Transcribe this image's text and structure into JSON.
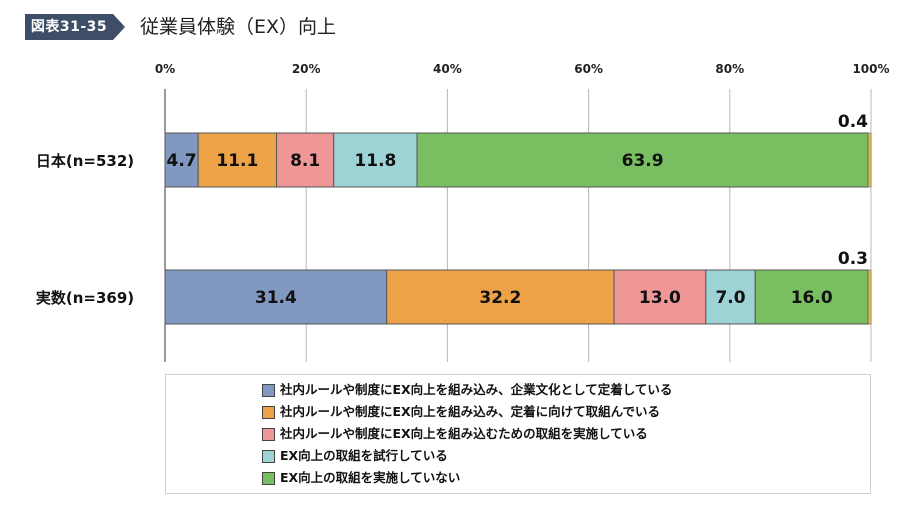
{
  "header": {
    "tag": "図表31-35",
    "title": "従業員体験（EX）向上"
  },
  "colors": {
    "tag_bg": "#3d4e66",
    "series": [
      "#8199c1",
      "#eda247",
      "#ef9696",
      "#9ed3d6",
      "#79bf62"
    ]
  },
  "chart_data": {
    "type": "bar",
    "orientation": "horizontal",
    "stacked": "percent",
    "categories": [
      "日本(n=532)",
      "実数(n=369)"
    ],
    "series": [
      {
        "name": "社内ルールや制度にEX向上を組み込み、企業文化として定着している",
        "values": [
          4.7,
          31.4
        ]
      },
      {
        "name": "社内ルールや制度にEX向上を組み込み、定着に向けて取組んでいる",
        "values": [
          11.1,
          32.2
        ]
      },
      {
        "name": "社内ルールや制度にEX向上を組み込むための取組を実施している",
        "values": [
          8.1,
          13.0
        ]
      },
      {
        "name": "EX向上の取組を試行している",
        "values": [
          11.8,
          7.0
        ]
      },
      {
        "name": "EX向上の取組を実施していない",
        "values": [
          63.9,
          16.0
        ]
      }
    ],
    "remainder_labels": [
      "0.4",
      "0.3"
    ],
    "value_labels": [
      [
        "4.7",
        "11.1",
        "8.1",
        "11.8",
        "63.9"
      ],
      [
        "31.4",
        "32.2",
        "13.0",
        "7.0",
        "16.0"
      ]
    ],
    "xticks": [
      "0%",
      "20%",
      "40%",
      "60%",
      "80%",
      "100%"
    ],
    "xlim": [
      0,
      100
    ],
    "grid": true,
    "legend_position": "bottom"
  }
}
